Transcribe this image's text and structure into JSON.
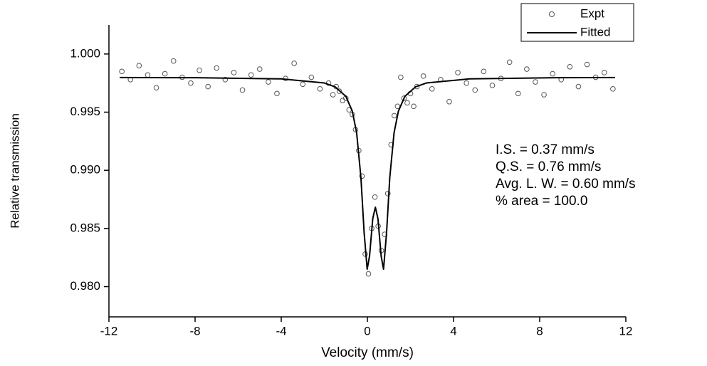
{
  "chart_data": {
    "type": "scatter-line",
    "xlabel": "Velocity (mm/s)",
    "ylabel": "Relative transmission",
    "xlim": [
      -12,
      12
    ],
    "ylim": [
      0.9774,
      1.0025
    ],
    "xticks": [
      -12,
      -8,
      -4,
      0,
      4,
      8,
      12
    ],
    "yticks": [
      {
        "value": 0.98,
        "label": "0.980"
      },
      0.985,
      {
        "value": 0.99,
        "label": "0.990"
      },
      0.995,
      {
        "value": 1.0,
        "label": "1.000"
      }
    ],
    "legend": "top-right",
    "annotations": [
      "I.S. = 0.37 mm/s",
      "Q.S. = 0.76 mm/s",
      "Avg. L. W. = 0.60 mm/s",
      "% area = 100.0"
    ],
    "series": [
      {
        "name": "Expt",
        "kind": "scatter",
        "color": "#555555",
        "x": [
          -11.4,
          -11.0,
          -10.6,
          -10.2,
          -9.8,
          -9.4,
          -9.0,
          -8.6,
          -8.2,
          -7.8,
          -7.4,
          -7.0,
          -6.6,
          -6.2,
          -5.8,
          -5.4,
          -5.0,
          -4.6,
          -4.2,
          -3.8,
          -3.4,
          -3.0,
          -2.6,
          -2.2,
          -1.8,
          -1.6,
          -1.45,
          -1.3,
          -1.15,
          -1.0,
          -0.85,
          -0.7,
          -0.55,
          -0.4,
          -0.25,
          -0.1,
          0.05,
          0.2,
          0.35,
          0.5,
          0.65,
          0.8,
          0.95,
          1.1,
          1.25,
          1.4,
          1.55,
          1.7,
          1.85,
          2.0,
          2.15,
          2.3,
          2.6,
          3.0,
          3.4,
          3.8,
          4.2,
          4.6,
          5.0,
          5.4,
          5.8,
          6.2,
          6.6,
          7.0,
          7.4,
          7.8,
          8.2,
          8.6,
          9.0,
          9.4,
          9.8,
          10.2,
          10.6,
          11.0,
          11.4
        ],
        "values": [
          0.9985,
          0.9978,
          0.999,
          0.9982,
          0.9971,
          0.9983,
          0.9994,
          0.998,
          0.9975,
          0.9986,
          0.9972,
          0.9988,
          0.9978,
          0.9984,
          0.9969,
          0.9982,
          0.9987,
          0.9976,
          0.9966,
          0.9979,
          0.9992,
          0.9974,
          0.998,
          0.997,
          0.9975,
          0.9965,
          0.9972,
          0.9968,
          0.996,
          0.9962,
          0.9952,
          0.9948,
          0.9935,
          0.9917,
          0.9895,
          0.9828,
          0.9811,
          0.985,
          0.9877,
          0.9852,
          0.9831,
          0.9845,
          0.988,
          0.9922,
          0.9947,
          0.9955,
          0.998,
          0.9962,
          0.9958,
          0.9966,
          0.9955,
          0.9972,
          0.9981,
          0.997,
          0.9978,
          0.9959,
          0.9984,
          0.9975,
          0.9969,
          0.9985,
          0.9973,
          0.9979,
          0.9993,
          0.9966,
          0.9987,
          0.9976,
          0.9965,
          0.9983,
          0.9978,
          0.9989,
          0.9972,
          0.9991,
          0.998,
          0.9984,
          0.997
        ]
      },
      {
        "name": "Fitted",
        "kind": "line",
        "color": "#000000",
        "x": [
          -11.5,
          -8,
          -4,
          -2,
          -1.5,
          -1,
          -0.7,
          -0.5,
          -0.3,
          -0.15,
          -0.01,
          0.1,
          0.25,
          0.37,
          0.49,
          0.64,
          0.75,
          0.89,
          1.04,
          1.24,
          1.44,
          1.74,
          2.24,
          2.74,
          4.74,
          8.74,
          11.5
        ],
        "values": [
          0.99798,
          0.99796,
          0.99786,
          0.99751,
          0.99718,
          0.99636,
          0.99509,
          0.99324,
          0.98938,
          0.98461,
          0.9815,
          0.98262,
          0.98585,
          0.98683,
          0.98585,
          0.98262,
          0.9815,
          0.98461,
          0.98938,
          0.99324,
          0.99509,
          0.99636,
          0.99718,
          0.99751,
          0.99786,
          0.99796,
          0.99798
        ]
      }
    ]
  }
}
